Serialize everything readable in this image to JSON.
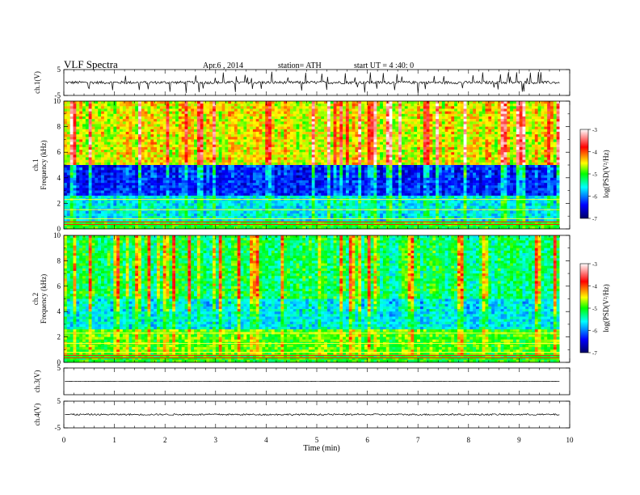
{
  "header": {
    "title": "VLF Spectra",
    "date": "Apr.6 , 2014",
    "station": "station= ATH",
    "start": "start UT = 4 :40: 0"
  },
  "chart_data": [
    {
      "type": "line",
      "name": "ch1-waveform",
      "ylabel": "ch.1(V)",
      "ylim": [
        -5,
        5
      ],
      "yticks": [
        "5",
        "-5"
      ],
      "xlim": [
        0,
        10
      ],
      "data_extent_min": [
        0,
        9.8
      ],
      "description_values": {
        "baseline": 0,
        "typical_amplitude": 1.2,
        "max_spike": 5
      }
    },
    {
      "type": "heatmap",
      "name": "ch1-spectrogram",
      "ylabel": "Frequency (kHz)",
      "channel_label": "ch.1",
      "ylim": [
        0,
        10
      ],
      "yticks": [
        "0",
        "2",
        "4",
        "6",
        "8",
        "10"
      ],
      "xlim": [
        0,
        9.8
      ],
      "colorbar": {
        "label": "log(PSD(V²/Hz)",
        "range": [
          -7,
          -3
        ],
        "ticks": [
          "-3",
          "-4",
          "-5",
          "-6",
          "-7"
        ],
        "colors": [
          "#000066",
          "#0000ff",
          "#00ffff",
          "#00ff00",
          "#ffff00",
          "#ff0000",
          "#ffffff"
        ]
      },
      "features": {
        "upper_band_kHz": [
          5,
          10
        ],
        "upper_level": -4.5,
        "lower_band_kHz": [
          0,
          4
        ],
        "lower_level": -6.3
      }
    },
    {
      "type": "heatmap",
      "name": "ch2-spectrogram",
      "ylabel": "Frequency (kHz)",
      "channel_label": "ch.2",
      "ylim": [
        0,
        10
      ],
      "yticks": [
        "0",
        "2",
        "4",
        "6",
        "8",
        "10"
      ],
      "xlim": [
        0,
        9.8
      ],
      "colorbar": {
        "label": "log(PSD(V²/Hz)",
        "range": [
          -7,
          -3
        ],
        "ticks": [
          "-3",
          "-4",
          "-5",
          "-6",
          "-7"
        ]
      },
      "features": {
        "upper_band_kHz": [
          5,
          10
        ],
        "upper_level": -5.2,
        "lower_band_kHz": [
          0,
          4
        ],
        "lower_level": -5.6
      }
    },
    {
      "type": "line",
      "name": "ch3-waveform",
      "ylabel": "ch.3(V)",
      "ylim": [
        -5,
        5
      ],
      "yticks": [
        "5"
      ],
      "xlim": [
        0,
        10
      ],
      "description_values": {
        "baseline": 0,
        "typical_amplitude": 0.05
      }
    },
    {
      "type": "line",
      "name": "ch4-waveform",
      "ylabel": "ch.4(V)",
      "ylim": [
        -5,
        5
      ],
      "yticks": [
        "5",
        "-5"
      ],
      "xlim": [
        0,
        10
      ],
      "description_values": {
        "baseline": 0,
        "typical_amplitude": 0.4
      }
    }
  ],
  "x_axis": {
    "label": "Time (min)",
    "range": [
      0,
      10
    ],
    "ticks": [
      "0",
      "1",
      "2",
      "3",
      "4",
      "5",
      "6",
      "7",
      "8",
      "9",
      "10"
    ]
  }
}
